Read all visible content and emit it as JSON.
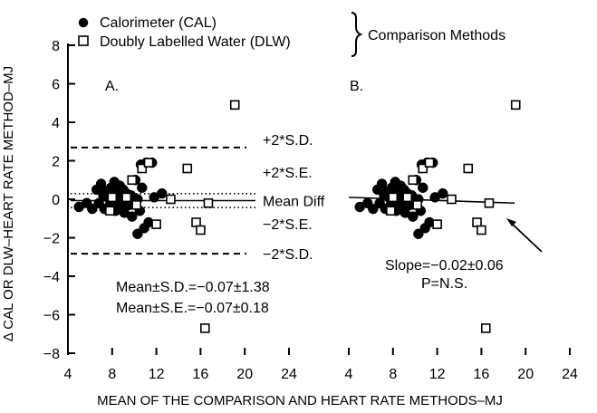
{
  "chart_data": {
    "type": "scatter",
    "legend": {
      "entries": [
        {
          "marker": "filled-circle",
          "label": "Calorimeter (CAL)"
        },
        {
          "marker": "open-square",
          "label": "Doubly Labelled Water (DLW)"
        }
      ],
      "group_label": "Comparison Methods",
      "placement": "top"
    },
    "ylabel": "Δ CAL OR DLW–HEART RATE METHOD–MJ",
    "xlabel": "MEAN OF THE COMPARISON AND HEART RATE METHODS–MJ",
    "xlim": [
      4,
      24
    ],
    "ylim": [
      -8,
      8
    ],
    "xticks": [
      "4",
      "8",
      "12",
      "16",
      "20",
      "24"
    ],
    "yticks": [
      "8",
      "6",
      "4",
      "2",
      "0",
      "−2",
      "−4",
      "−6",
      "−8"
    ],
    "grid": false,
    "panels": [
      {
        "label": "A.",
        "reference_lines": [
          {
            "label": "+2*S.D.",
            "y": 2.69,
            "style": "dashed"
          },
          {
            "label": "+2*S.E.",
            "y": 0.29,
            "style": "dotted"
          },
          {
            "label": "Mean Diff",
            "y": -0.07,
            "style": "solid"
          },
          {
            "label": "−2*S.E.",
            "y": -0.43,
            "style": "dotted"
          },
          {
            "label": "−2*S.D.",
            "y": -2.83,
            "style": "dashed"
          }
        ],
        "stats_text": [
          "Mean±S.D.=−0.07±1.38",
          "Mean±S.E.=−0.07±0.18"
        ]
      },
      {
        "label": "B.",
        "regression_line": {
          "x": [
            4.0,
            19.0
          ],
          "y": [
            0.1,
            -0.2
          ]
        },
        "slope_text": [
          "Slope=−0.02±0.06",
          "P=N.S."
        ]
      }
    ],
    "series": [
      {
        "name": "Calorimeter (CAL)",
        "points": [
          [
            5.0,
            -0.4
          ],
          [
            5.7,
            -0.2
          ],
          [
            6.2,
            -0.5
          ],
          [
            6.6,
            0.5
          ],
          [
            6.8,
            -0.2
          ],
          [
            7.0,
            0.8
          ],
          [
            7.2,
            0.2
          ],
          [
            7.3,
            -0.5
          ],
          [
            7.5,
            0.4
          ],
          [
            7.6,
            0.1
          ],
          [
            7.8,
            -0.3
          ],
          [
            7.9,
            0.6
          ],
          [
            8.0,
            0.2
          ],
          [
            8.1,
            -0.1
          ],
          [
            8.2,
            0.9
          ],
          [
            8.3,
            -0.6
          ],
          [
            8.4,
            0.3
          ],
          [
            8.5,
            0.0
          ],
          [
            8.6,
            -0.4
          ],
          [
            8.7,
            0.7
          ],
          [
            8.8,
            0.1
          ],
          [
            8.9,
            -0.2
          ],
          [
            9.0,
            0.5
          ],
          [
            9.1,
            -0.7
          ],
          [
            9.3,
            0.3
          ],
          [
            9.5,
            -0.3
          ],
          [
            9.7,
            0.2
          ],
          [
            9.8,
            -0.9
          ],
          [
            10.1,
            1.0
          ],
          [
            10.3,
            0.0
          ],
          [
            10.5,
            -0.6
          ],
          [
            10.7,
            0.6
          ],
          [
            10.9,
            -1.5
          ],
          [
            11.1,
            1.9
          ],
          [
            11.3,
            -1.2
          ],
          [
            11.6,
            1.9
          ],
          [
            12.5,
            0.3
          ],
          [
            10.3,
            -1.8
          ],
          [
            10.6,
            1.8
          ],
          [
            11.8,
            0.1
          ]
        ]
      },
      {
        "name": "Doubly Labelled Water (DLW)",
        "points": [
          [
            7.8,
            -0.6
          ],
          [
            8.0,
            0.1
          ],
          [
            9.3,
            0.1
          ],
          [
            9.8,
            1.0
          ],
          [
            10.2,
            -0.3
          ],
          [
            10.7,
            1.6
          ],
          [
            11.3,
            1.9
          ],
          [
            12.0,
            -1.3
          ],
          [
            13.3,
            0.0
          ],
          [
            14.8,
            1.6
          ],
          [
            15.6,
            -1.2
          ],
          [
            16.0,
            -1.6
          ],
          [
            16.7,
            -0.2
          ],
          [
            16.4,
            -6.7
          ],
          [
            19.1,
            4.9
          ]
        ]
      }
    ]
  }
}
